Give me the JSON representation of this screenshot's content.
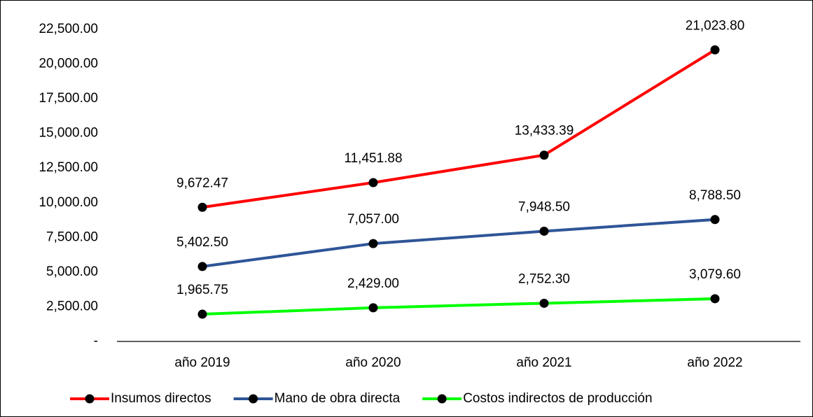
{
  "chart_data": {
    "type": "line",
    "categories": [
      "año 2019",
      "año 2020",
      "año 2021",
      "año 2022"
    ],
    "series": [
      {
        "name": "Insumos directos",
        "color": "#ff0000",
        "values": [
          9672.47,
          11451.88,
          13433.39,
          21023.8
        ],
        "value_labels": [
          "9,672.47",
          "11,451.88",
          "13,433.39",
          "21,023.80"
        ]
      },
      {
        "name": "Mano de obra directa",
        "color": "#2f5597",
        "values": [
          5402.5,
          7057.0,
          7948.5,
          8788.5
        ],
        "value_labels": [
          "5,402.50",
          "7,057.00",
          "7,948.50",
          "8,788.50"
        ]
      },
      {
        "name": "Costos indirectos de producción",
        "color": "#00ff00",
        "values": [
          1965.75,
          2429.0,
          2752.3,
          3079.6
        ],
        "value_labels": [
          "1,965.75",
          "2,429.00",
          "2,752.30",
          "3,079.60"
        ]
      }
    ],
    "ylim": [
      0,
      22500
    ],
    "yticks": [
      {
        "value": 0,
        "label": "-"
      },
      {
        "value": 2500,
        "label": "2,500.00"
      },
      {
        "value": 5000,
        "label": "5,000.00"
      },
      {
        "value": 7500,
        "label": "7,500.00"
      },
      {
        "value": 10000,
        "label": "10,000.00"
      },
      {
        "value": 12500,
        "label": "12,500.00"
      },
      {
        "value": 15000,
        "label": "15,000.00"
      },
      {
        "value": 17500,
        "label": "17,500.00"
      },
      {
        "value": 20000,
        "label": "20,000.00"
      },
      {
        "value": 22500,
        "label": "22,500.00"
      }
    ],
    "grid": false,
    "legend": "bottom"
  }
}
